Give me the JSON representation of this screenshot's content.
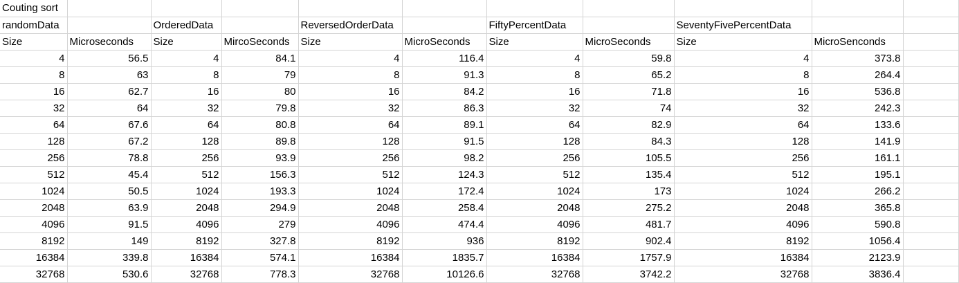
{
  "sheet": {
    "title": "Couting sort",
    "section_labels": [
      "randomData",
      "",
      "OrderedData",
      "",
      "ReversedOrderData",
      "",
      "FiftyPercentData",
      "",
      "SeventyFivePercentData",
      "",
      ""
    ],
    "headers": [
      "Size",
      "Microseconds",
      "Size",
      "MircoSeconds",
      "Size",
      "MicroSeconds",
      "Size",
      "MicroSeconds",
      "Size",
      "MicroSenconds",
      ""
    ],
    "rows": [
      [
        "4",
        "56.5",
        "4",
        "84.1",
        "4",
        "116.4",
        "4",
        "59.8",
        "4",
        "373.8",
        ""
      ],
      [
        "8",
        "63",
        "8",
        "79",
        "8",
        "91.3",
        "8",
        "65.2",
        "8",
        "264.4",
        ""
      ],
      [
        "16",
        "62.7",
        "16",
        "80",
        "16",
        "84.2",
        "16",
        "71.8",
        "16",
        "536.8",
        ""
      ],
      [
        "32",
        "64",
        "32",
        "79.8",
        "32",
        "86.3",
        "32",
        "74",
        "32",
        "242.3",
        ""
      ],
      [
        "64",
        "67.6",
        "64",
        "80.8",
        "64",
        "89.1",
        "64",
        "82.9",
        "64",
        "133.6",
        ""
      ],
      [
        "128",
        "67.2",
        "128",
        "89.8",
        "128",
        "91.5",
        "128",
        "84.3",
        "128",
        "141.9",
        ""
      ],
      [
        "256",
        "78.8",
        "256",
        "93.9",
        "256",
        "98.2",
        "256",
        "105.5",
        "256",
        "161.1",
        ""
      ],
      [
        "512",
        "45.4",
        "512",
        "156.3",
        "512",
        "124.3",
        "512",
        "135.4",
        "512",
        "195.1",
        ""
      ],
      [
        "1024",
        "50.5",
        "1024",
        "193.3",
        "1024",
        "172.4",
        "1024",
        "173",
        "1024",
        "266.2",
        ""
      ],
      [
        "2048",
        "63.9",
        "2048",
        "294.9",
        "2048",
        "258.4",
        "2048",
        "275.2",
        "2048",
        "365.8",
        ""
      ],
      [
        "4096",
        "91.5",
        "4096",
        "279",
        "4096",
        "474.4",
        "4096",
        "481.7",
        "4096",
        "590.8",
        ""
      ],
      [
        "8192",
        "149",
        "8192",
        "327.8",
        "8192",
        "936",
        "8192",
        "902.4",
        "8192",
        "1056.4",
        ""
      ],
      [
        "16384",
        "339.8",
        "16384",
        "574.1",
        "16384",
        "1835.7",
        "16384",
        "1757.9",
        "16384",
        "2123.9",
        ""
      ],
      [
        "32768",
        "530.6",
        "32768",
        "778.3",
        "32768",
        "10126.6",
        "32768",
        "3742.2",
        "32768",
        "3836.4",
        ""
      ]
    ]
  }
}
